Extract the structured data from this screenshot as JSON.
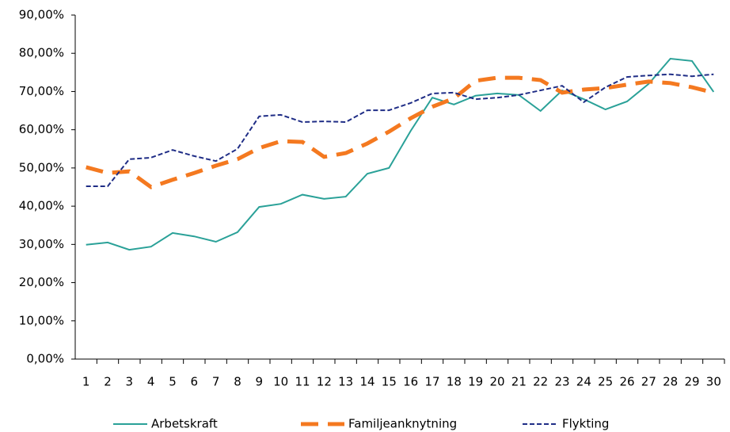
{
  "chart_data": {
    "type": "line",
    "categories": [
      "1",
      "2",
      "3",
      "4",
      "5",
      "6",
      "7",
      "8",
      "9",
      "10",
      "11",
      "12",
      "13",
      "14",
      "15",
      "16",
      "17",
      "18",
      "19",
      "20",
      "21",
      "22",
      "23",
      "24",
      "25",
      "26",
      "27",
      "28",
      "29",
      "30"
    ],
    "series": [
      {
        "name": "Arbetskraft",
        "color": "#2aa198",
        "line_style": "solid",
        "values": [
          29.9,
          30.5,
          28.6,
          29.4,
          33,
          32.1,
          30.7,
          33.2,
          39.8,
          40.6,
          43,
          41.9,
          42.5,
          48.5,
          50,
          59.7,
          68.4,
          66.6,
          68.9,
          69.5,
          69.1,
          64.9,
          70.3,
          68,
          65.3,
          67.4,
          72,
          78.6,
          78,
          69.9
        ]
      },
      {
        "name": "Familjeanknytning",
        "color": "#f47920",
        "line_style": "long-dash",
        "values": [
          50.2,
          48.7,
          49.1,
          45,
          46.9,
          48.7,
          50.6,
          52.3,
          55.2,
          57,
          56.8,
          52.9,
          53.9,
          56.4,
          59.5,
          63,
          66,
          68.2,
          72.8,
          73.6,
          73.6,
          73,
          69.7,
          70.5,
          70.9,
          71.8,
          72.6,
          72.2,
          71.1,
          69.7
        ]
      },
      {
        "name": "Flykting",
        "color": "#1f2d86",
        "line_style": "dash",
        "values": [
          45.2,
          45.2,
          52.3,
          52.7,
          54.7,
          53.1,
          51.8,
          55,
          63.5,
          63.9,
          62,
          62.2,
          62,
          65.1,
          65.1,
          67,
          69.5,
          69.7,
          68,
          68.4,
          69.1,
          70.3,
          71.5,
          67.2,
          71.1,
          73.8,
          74.2,
          74.5,
          74,
          74.5
        ]
      }
    ],
    "ylim": [
      0,
      90
    ],
    "yticks": [
      {
        "value": 0,
        "label": "0,00%"
      },
      {
        "value": 10,
        "label": "10,00%"
      },
      {
        "value": 20,
        "label": "20,00%"
      },
      {
        "value": 30,
        "label": "30,00%"
      },
      {
        "value": 40,
        "label": "40,00%"
      },
      {
        "value": 50,
        "label": "50,00%"
      },
      {
        "value": 60,
        "label": "60,00%"
      },
      {
        "value": 70,
        "label": "70,00%"
      },
      {
        "value": 80,
        "label": "80,00%"
      },
      {
        "value": 90,
        "label": "90,00%"
      }
    ],
    "grid": false,
    "legend": "bottom"
  }
}
